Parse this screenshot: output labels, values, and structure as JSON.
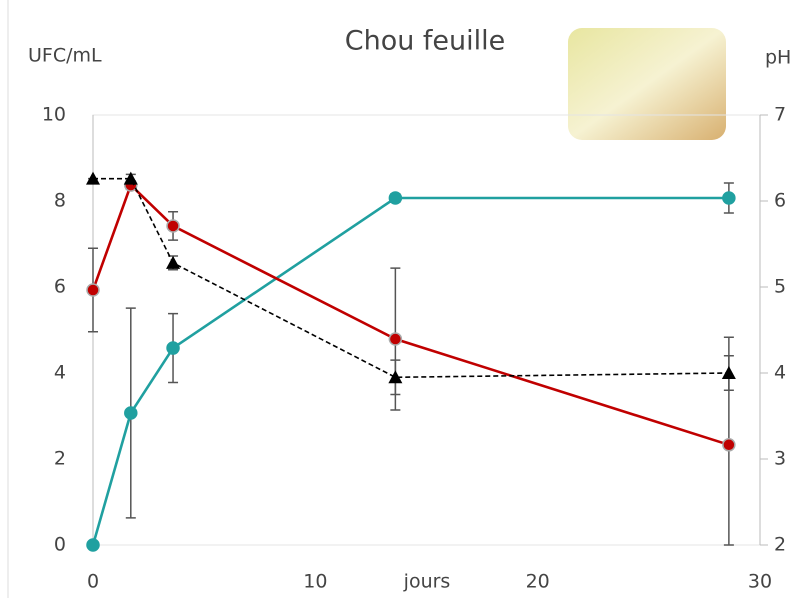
{
  "chart_data": {
    "type": "line",
    "title": "Chou feuille",
    "y_label": "UFC/mL",
    "y2_label": "pH",
    "x_label": "jours",
    "xlim": [
      0,
      30
    ],
    "xticks": [
      0,
      10,
      20,
      30
    ],
    "ylim": [
      0,
      10
    ],
    "yticks": [
      0,
      2,
      4,
      6,
      8,
      10
    ],
    "y2lim": [
      2,
      7
    ],
    "y2ticks": [
      2,
      3,
      4,
      5,
      6,
      7
    ],
    "series": [
      {
        "color": "#20a0a0",
        "marker": "circle",
        "dashed": false,
        "x": [
          0,
          1.7,
          3.6,
          13.6,
          28.6
        ],
        "values": [
          0,
          3.07,
          4.58,
          8.07,
          8.07
        ],
        "errors": [
          0,
          2.44,
          0.8,
          0.1,
          0.35
        ]
      },
      {
        "color": "#c00000",
        "marker": "circle",
        "dashed": false,
        "x": [
          0,
          1.7,
          3.6,
          13.6,
          28.6
        ],
        "values": [
          5.93,
          8.37,
          7.42,
          4.79,
          2.33
        ],
        "errors": [
          0.97,
          0.1,
          0.33,
          1.65,
          2.5
        ]
      },
      {
        "color": "#000000",
        "marker": "triangle",
        "dashed": true,
        "axis": "y2",
        "x": [
          0,
          1.7,
          3.6,
          13.6,
          28.6
        ],
        "values": [
          6.26,
          6.26,
          5.28,
          3.95,
          4.0
        ],
        "errors": [
          0,
          0.05,
          0.08,
          0.2,
          0.2
        ]
      }
    ]
  }
}
